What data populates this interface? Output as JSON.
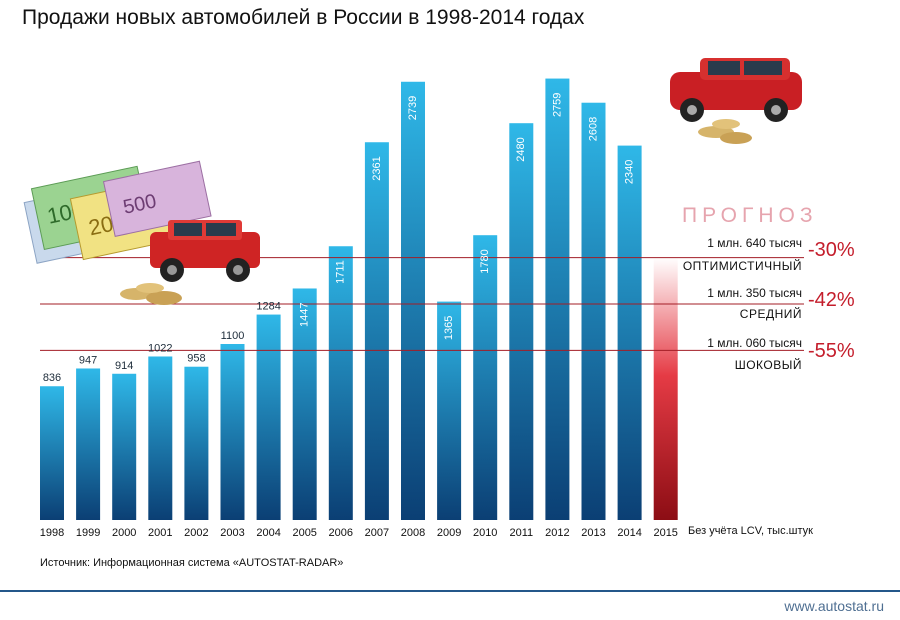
{
  "chart_data": {
    "type": "bar",
    "title": "Продажи новых автомобилей в России в 1998-2014 годах",
    "categories": [
      "1998",
      "1999",
      "2000",
      "2001",
      "2002",
      "2003",
      "2004",
      "2005",
      "2006",
      "2007",
      "2008",
      "2009",
      "2010",
      "2011",
      "2012",
      "2013",
      "2014",
      "2015"
    ],
    "values": [
      836,
      947,
      914,
      1022,
      958,
      1100,
      1284,
      1447,
      1711,
      2361,
      2739,
      1365,
      1780,
      2480,
      2759,
      2608,
      2340,
      null
    ],
    "labels_inside": [
      "1447",
      "1711",
      "2361",
      "2739",
      "1365",
      "1780",
      "2480",
      "2759",
      "2608",
      "2340"
    ],
    "ylim": [
      0,
      3000
    ],
    "grid": false,
    "unit_note": "Без учёта LCV, тыс.штук",
    "forecast": {
      "heading": "ПРОГНОЗ",
      "year": "2015",
      "scenarios": [
        {
          "line1": "1 млн. 640 тысяч",
          "line2": "ОПТИМИСТИЧНЫЙ",
          "percent": "-30%",
          "value": 1640
        },
        {
          "line1": "1 млн. 350 тысяч",
          "line2": "СРЕДНИЙ",
          "percent": "-42%",
          "value": 1350
        },
        {
          "line1": "1 млн. 060 тысяч",
          "line2": "ШОКОВЫЙ",
          "percent": "-55%",
          "value": 1060
        }
      ]
    },
    "colors": {
      "bar_top": "#2fb8e8",
      "bar_bottom": "#0b3f74",
      "forecast_top": "#ffffff",
      "forecast_bottom": "#8c0d14",
      "forecast_line": "#a31d26",
      "percent": "#c41d2b"
    }
  },
  "footer": {
    "source": "Источник: Информационная система «AUTOSTAT-RADAR»",
    "site_url": "www.autostat.ru"
  },
  "decor": {
    "left_image": "euro-banknotes-red-suv-coins",
    "right_image": "red-suv-coins"
  }
}
